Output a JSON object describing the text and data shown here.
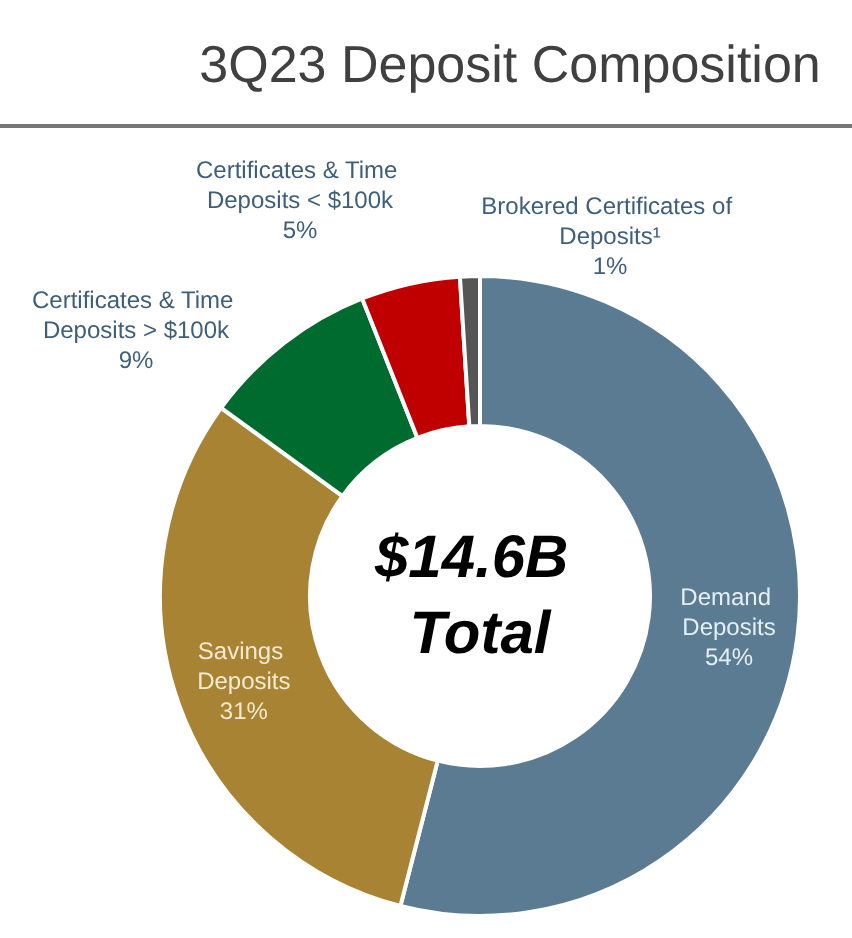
{
  "chart_data": {
    "type": "donut",
    "title": "3Q23 Deposit Composition",
    "categories": [
      "Demand Deposits",
      "Savings Deposits",
      "Certificates & Time Deposits > $100k",
      "Certificates & Time Deposits < $100k",
      "Brokered Certificates of Deposits¹"
    ],
    "values": [
      54,
      31,
      9,
      5,
      1
    ],
    "value_labels": [
      "54%",
      "31%",
      "9%",
      "5%",
      "1%"
    ],
    "colors": [
      "#5a7b92",
      "#a88334",
      "#006b2e",
      "#c00000",
      "#555555"
    ],
    "annotations": [
      "$14.6B Total"
    ]
  }
}
